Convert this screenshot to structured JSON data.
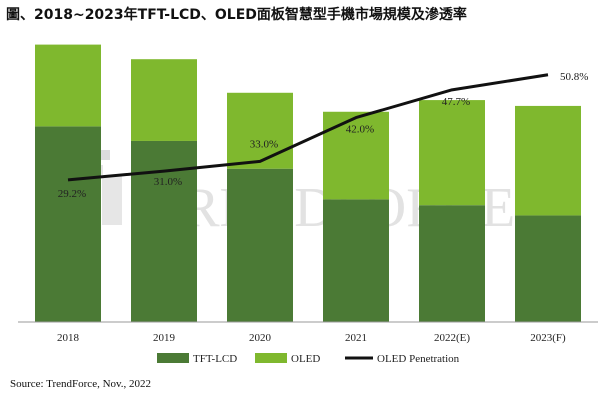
{
  "title": "圖、2018~2023年TFT-LCD、OLED面板智慧型手機市場規模及滲透率",
  "source": "Source: TrendForce, Nov., 2022",
  "watermark": "TRENDFORCE",
  "colors": {
    "tft": "#4b7a35",
    "oled": "#7fb82e",
    "line": "#111111",
    "axis": "#999999",
    "watermark_light": "#e8e8e8",
    "watermark_mid": "#cfcfcf"
  },
  "chart_data": {
    "type": "bar",
    "stacked": true,
    "categories": [
      "2018",
      "2019",
      "2020",
      "2021",
      "2022(E)",
      "2023(F)"
    ],
    "series": [
      {
        "name": "TFT-LCD",
        "type": "bar",
        "values": [
          1.34,
          1.24,
          1.05,
          0.84,
          0.8,
          0.73
        ]
      },
      {
        "name": "OLED",
        "type": "bar",
        "values": [
          0.56,
          0.56,
          0.52,
          0.6,
          0.72,
          0.75
        ]
      },
      {
        "name": "OLED Penetration",
        "type": "line",
        "values": [
          29.2,
          31.0,
          33.0,
          42.0,
          47.7,
          50.8
        ],
        "labels": [
          "29.2%",
          "31.0%",
          "33.0%",
          "42.0%",
          "47.7%",
          "50.8%"
        ]
      }
    ],
    "bar_ylim": [
      0,
      2.0
    ],
    "line_ylim": [
      0,
      60
    ],
    "grid": false,
    "legend_position": "bottom",
    "legend": [
      "TFT-LCD",
      "OLED",
      "OLED Penetration"
    ]
  }
}
